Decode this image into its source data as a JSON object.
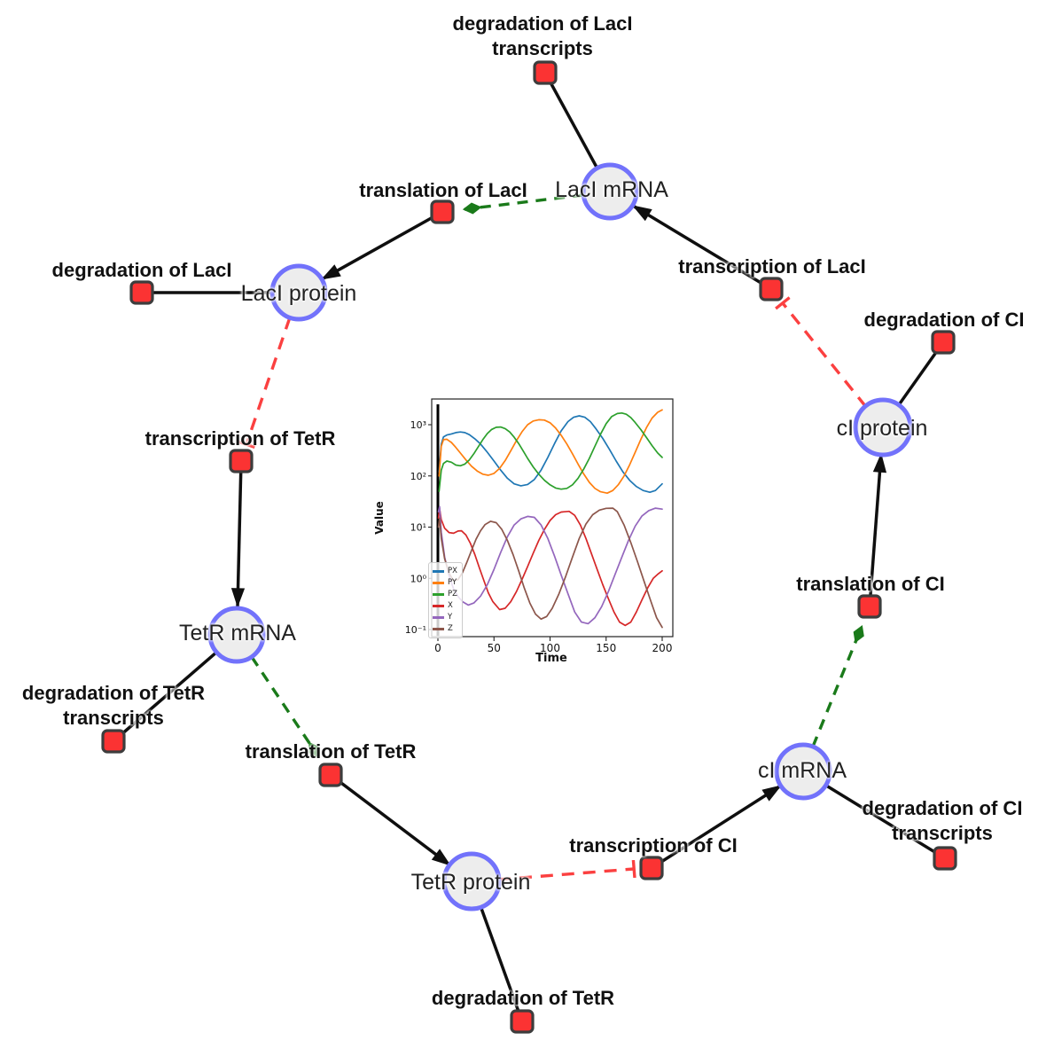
{
  "diagram": {
    "species": [
      {
        "label": "LacI mRNA"
      },
      {
        "label": "LacI protein"
      },
      {
        "label": "TetR mRNA"
      },
      {
        "label": "TetR protein"
      },
      {
        "label": "cI mRNA"
      },
      {
        "label": "cI protein"
      }
    ],
    "reactions": [
      {
        "label": "degradation of LacI transcripts"
      },
      {
        "label": "translation of LacI"
      },
      {
        "label": "degradation of LacI"
      },
      {
        "label": "transcription of LacI"
      },
      {
        "label": "degradation of CI"
      },
      {
        "label": "transcription of TetR"
      },
      {
        "label": "translation of CI"
      },
      {
        "label": "degradation of TetR transcripts"
      },
      {
        "label": "translation of TetR"
      },
      {
        "label": "transcription of CI"
      },
      {
        "label": "degradation of CI transcripts"
      },
      {
        "label": "degradation of TetR"
      }
    ],
    "colors": {
      "species_fill": "#ededed",
      "species_border": "#7272fb",
      "reaction_fill": "#fb3333",
      "reaction_border": "#3d3d3d",
      "edge": "#0f0f0f",
      "inhibition": "#fb4040",
      "activation": "#1a7a1a"
    }
  },
  "chart_data": {
    "type": "line",
    "xlabel": "Time",
    "ylabel": "Value",
    "yscale": "log",
    "xlim": [
      0,
      200
    ],
    "ylim_exponents": [
      -1.15,
      3.5
    ],
    "grid": false,
    "legend_position": "lower left",
    "event_line_x": 0,
    "xticks": [
      0,
      50,
      100,
      150,
      200
    ],
    "yticks": [
      {
        "exp": 3,
        "label": "10³"
      },
      {
        "exp": 2,
        "label": "10²"
      },
      {
        "exp": 1,
        "label": "10¹"
      },
      {
        "exp": 0,
        "label": "10⁰"
      },
      {
        "exp": -1,
        "label": "10⁻¹"
      }
    ],
    "series": [
      {
        "name": "PX",
        "color": "#1f77b4",
        "points": [
          [
            1,
            120
          ],
          [
            3,
            420
          ],
          [
            5,
            580
          ],
          [
            8,
            630
          ],
          [
            12,
            660
          ],
          [
            16,
            700
          ],
          [
            20,
            720
          ],
          [
            24,
            700
          ],
          [
            28,
            640
          ],
          [
            33,
            530
          ],
          [
            38,
            420
          ],
          [
            44,
            290
          ],
          [
            50,
            195
          ],
          [
            56,
            130
          ],
          [
            62,
            90
          ],
          [
            68,
            70
          ],
          [
            74,
            64
          ],
          [
            80,
            68
          ],
          [
            86,
            85
          ],
          [
            92,
            130
          ],
          [
            98,
            230
          ],
          [
            104,
            430
          ],
          [
            110,
            760
          ],
          [
            116,
            1150
          ],
          [
            121,
            1400
          ],
          [
            126,
            1490
          ],
          [
            131,
            1400
          ],
          [
            136,
            1150
          ],
          [
            141,
            830
          ],
          [
            147,
            540
          ],
          [
            153,
            330
          ],
          [
            159,
            195
          ],
          [
            165,
            120
          ],
          [
            171,
            82
          ],
          [
            177,
            62
          ],
          [
            183,
            52
          ],
          [
            189,
            48
          ],
          [
            194,
            52
          ],
          [
            200,
            70
          ]
        ]
      },
      {
        "name": "PY",
        "color": "#ff7f0e",
        "points": [
          [
            1,
            100
          ],
          [
            3,
            380
          ],
          [
            5,
            510
          ],
          [
            8,
            520
          ],
          [
            12,
            450
          ],
          [
            16,
            360
          ],
          [
            20,
            280
          ],
          [
            25,
            205
          ],
          [
            30,
            155
          ],
          [
            35,
            125
          ],
          [
            40,
            108
          ],
          [
            45,
            103
          ],
          [
            50,
            112
          ],
          [
            55,
            140
          ],
          [
            60,
            200
          ],
          [
            65,
            310
          ],
          [
            70,
            490
          ],
          [
            75,
            730
          ],
          [
            80,
            1000
          ],
          [
            85,
            1180
          ],
          [
            90,
            1250
          ],
          [
            95,
            1230
          ],
          [
            100,
            1090
          ],
          [
            105,
            860
          ],
          [
            110,
            620
          ],
          [
            115,
            420
          ],
          [
            120,
            270
          ],
          [
            125,
            170
          ],
          [
            130,
            110
          ],
          [
            135,
            75
          ],
          [
            140,
            57
          ],
          [
            145,
            49
          ],
          [
            151,
            46
          ],
          [
            156,
            52
          ],
          [
            161,
            68
          ],
          [
            166,
            100
          ],
          [
            171,
            165
          ],
          [
            176,
            290
          ],
          [
            181,
            520
          ],
          [
            186,
            880
          ],
          [
            191,
            1350
          ],
          [
            196,
            1750
          ],
          [
            200,
            1950
          ]
        ]
      },
      {
        "name": "PZ",
        "color": "#2ca02c",
        "points": [
          [
            1,
            50
          ],
          [
            3,
            130
          ],
          [
            5,
            175
          ],
          [
            8,
            195
          ],
          [
            12,
            185
          ],
          [
            16,
            163
          ],
          [
            20,
            158
          ],
          [
            24,
            170
          ],
          [
            28,
            205
          ],
          [
            32,
            270
          ],
          [
            36,
            370
          ],
          [
            40,
            510
          ],
          [
            44,
            670
          ],
          [
            48,
            810
          ],
          [
            52,
            890
          ],
          [
            56,
            900
          ],
          [
            60,
            840
          ],
          [
            64,
            720
          ],
          [
            68,
            570
          ],
          [
            72,
            430
          ],
          [
            76,
            310
          ],
          [
            80,
            220
          ],
          [
            85,
            150
          ],
          [
            90,
            108
          ],
          [
            95,
            82
          ],
          [
            100,
            67
          ],
          [
            105,
            58
          ],
          [
            110,
            55
          ],
          [
            115,
            57
          ],
          [
            120,
            67
          ],
          [
            125,
            90
          ],
          [
            130,
            135
          ],
          [
            135,
            220
          ],
          [
            140,
            380
          ],
          [
            145,
            650
          ],
          [
            150,
            1050
          ],
          [
            155,
            1450
          ],
          [
            160,
            1650
          ],
          [
            164,
            1690
          ],
          [
            168,
            1600
          ],
          [
            172,
            1380
          ],
          [
            176,
            1100
          ],
          [
            181,
            800
          ],
          [
            186,
            560
          ],
          [
            191,
            390
          ],
          [
            196,
            280
          ],
          [
            200,
            230
          ]
        ]
      },
      {
        "name": "X",
        "color": "#d62728",
        "points": [
          [
            0.5,
            15
          ],
          [
            1.5,
            23
          ],
          [
            3,
            14
          ],
          [
            6,
            9.5
          ],
          [
            10,
            7.8
          ],
          [
            14,
            7.6
          ],
          [
            18,
            8.4
          ],
          [
            21,
            8.5
          ],
          [
            25,
            7
          ],
          [
            29,
            4.8
          ],
          [
            33,
            2.9
          ],
          [
            37,
            1.6
          ],
          [
            41,
            0.9
          ],
          [
            45,
            0.52
          ],
          [
            49,
            0.35
          ],
          [
            55,
            0.245
          ],
          [
            60,
            0.26
          ],
          [
            65,
            0.35
          ],
          [
            70,
            0.55
          ],
          [
            75,
            0.95
          ],
          [
            80,
            1.7
          ],
          [
            85,
            3.1
          ],
          [
            90,
            5.5
          ],
          [
            95,
            9
          ],
          [
            100,
            13.5
          ],
          [
            105,
            17.5
          ],
          [
            110,
            19.7
          ],
          [
            117,
            20.3
          ],
          [
            122,
            17
          ],
          [
            127,
            11
          ],
          [
            132,
            6
          ],
          [
            137,
            3
          ],
          [
            142,
            1.5
          ],
          [
            147,
            0.75
          ],
          [
            152,
            0.4
          ],
          [
            157,
            0.22
          ],
          [
            162,
            0.14
          ],
          [
            167,
            0.12
          ],
          [
            172,
            0.14
          ],
          [
            177,
            0.22
          ],
          [
            182,
            0.38
          ],
          [
            187,
            0.65
          ],
          [
            192,
            1
          ],
          [
            196,
            1.2
          ],
          [
            200,
            1.4
          ]
        ]
      },
      {
        "name": "Y",
        "color": "#9467bd",
        "points": [
          [
            0.5,
            20
          ],
          [
            1.5,
            25
          ],
          [
            3,
            8
          ],
          [
            6,
            2.6
          ],
          [
            10,
            1.1
          ],
          [
            14,
            0.62
          ],
          [
            18,
            0.44
          ],
          [
            22,
            0.35
          ],
          [
            27,
            0.3
          ],
          [
            32,
            0.33
          ],
          [
            38,
            0.45
          ],
          [
            44,
            0.75
          ],
          [
            50,
            1.5
          ],
          [
            56,
            3.2
          ],
          [
            62,
            6.5
          ],
          [
            68,
            11
          ],
          [
            74,
            14.5
          ],
          [
            80,
            16.2
          ],
          [
            86,
            15.5
          ],
          [
            92,
            11
          ],
          [
            98,
            6
          ],
          [
            104,
            2.7
          ],
          [
            110,
            1.15
          ],
          [
            116,
            0.5
          ],
          [
            122,
            0.22
          ],
          [
            128,
            0.14
          ],
          [
            134,
            0.13
          ],
          [
            140,
            0.17
          ],
          [
            146,
            0.28
          ],
          [
            152,
            0.55
          ],
          [
            158,
            1.2
          ],
          [
            164,
            2.6
          ],
          [
            170,
            5.5
          ],
          [
            176,
            10.5
          ],
          [
            182,
            16.5
          ],
          [
            188,
            21
          ],
          [
            194,
            23.5
          ],
          [
            200,
            22.5
          ]
        ]
      },
      {
        "name": "Z",
        "color": "#8c564b",
        "points": [
          [
            0.5,
            10
          ],
          [
            1.5,
            15
          ],
          [
            3,
            6
          ],
          [
            6,
            2.4
          ],
          [
            10,
            1.25
          ],
          [
            14,
            0.9
          ],
          [
            18,
            0.95
          ],
          [
            22,
            1.3
          ],
          [
            26,
            2.1
          ],
          [
            30,
            3.5
          ],
          [
            34,
            5.8
          ],
          [
            38,
            8.5
          ],
          [
            42,
            11.2
          ],
          [
            47,
            13
          ],
          [
            52,
            12.2
          ],
          [
            57,
            9
          ],
          [
            62,
            5.5
          ],
          [
            67,
            2.9
          ],
          [
            72,
            1.4
          ],
          [
            77,
            0.65
          ],
          [
            82,
            0.33
          ],
          [
            87,
            0.2
          ],
          [
            92,
            0.16
          ],
          [
            97,
            0.18
          ],
          [
            102,
            0.26
          ],
          [
            108,
            0.5
          ],
          [
            114,
            1.1
          ],
          [
            120,
            2.6
          ],
          [
            126,
            6
          ],
          [
            132,
            11.5
          ],
          [
            138,
            17.5
          ],
          [
            144,
            21.5
          ],
          [
            150,
            23.3
          ],
          [
            156,
            23.5
          ],
          [
            160,
            20
          ],
          [
            166,
            11
          ],
          [
            172,
            5
          ],
          [
            178,
            2.1
          ],
          [
            184,
            0.85
          ],
          [
            190,
            0.35
          ],
          [
            195,
            0.17
          ],
          [
            200,
            0.11
          ]
        ]
      }
    ]
  }
}
